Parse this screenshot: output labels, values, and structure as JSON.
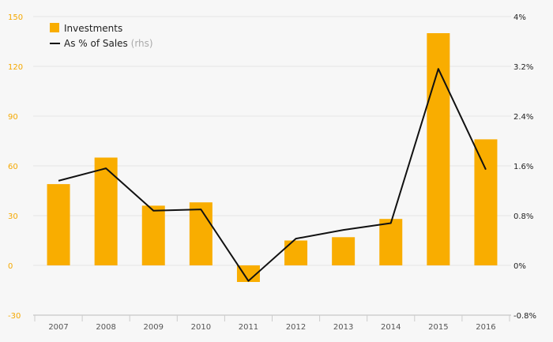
{
  "chart_data": {
    "type": "bar",
    "categories": [
      "2007",
      "2008",
      "2009",
      "2010",
      "2011",
      "2012",
      "2013",
      "2014",
      "2015",
      "2016"
    ],
    "series": [
      {
        "name": "Investments",
        "type": "bar",
        "axis": "left",
        "color": "#f9ad00",
        "values": [
          49,
          65,
          36,
          38,
          -10,
          15,
          17,
          28,
          140,
          76
        ]
      },
      {
        "name": "As % of Sales",
        "type": "line",
        "axis": "right",
        "color": "#111111",
        "values": [
          1.36,
          1.56,
          0.88,
          0.9,
          -0.25,
          0.43,
          0.57,
          0.68,
          3.16,
          1.54
        ]
      }
    ],
    "legend": [
      {
        "label": "Investments",
        "suffix": ""
      },
      {
        "label": "As % of Sales",
        "suffix": "(rhs)"
      }
    ],
    "left_axis": {
      "ticks": [
        "150",
        "120",
        "90",
        "60",
        "30",
        "0",
        "-30"
      ],
      "values": [
        150,
        120,
        90,
        60,
        30,
        0,
        -30
      ],
      "ylim": [
        -30,
        150
      ],
      "color": "#f5a800"
    },
    "right_axis": {
      "ticks": [
        "4%",
        "3.2%",
        "2.4%",
        "1.6%",
        "0.8%",
        "0%",
        "-0.8%"
      ],
      "values": [
        4,
        3.2,
        2.4,
        1.6,
        0.8,
        0,
        -0.8
      ],
      "ylim": [
        -0.8,
        4
      ]
    },
    "grid": true,
    "legend_position": "top-left"
  }
}
